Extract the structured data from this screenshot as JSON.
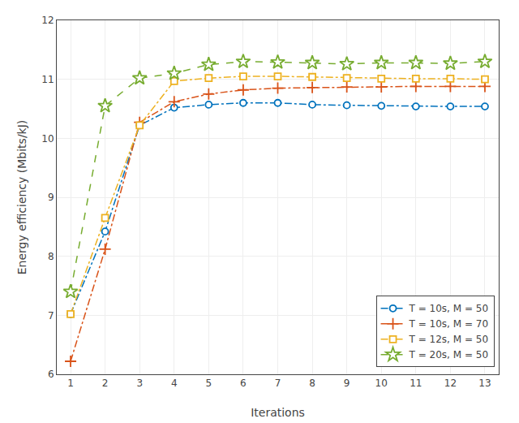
{
  "chart_data": {
    "type": "line",
    "x": [
      1,
      2,
      3,
      4,
      5,
      6,
      7,
      8,
      9,
      10,
      11,
      12,
      13
    ],
    "series": [
      {
        "name": "T = 10s, M = 50",
        "color": "#0072BD",
        "marker": "circle",
        "line_style": "dashdot",
        "values": [
          7.02,
          8.42,
          10.22,
          10.52,
          10.57,
          10.6,
          10.6,
          10.57,
          10.56,
          10.55,
          10.54,
          10.54,
          10.54
        ]
      },
      {
        "name": "T = 10s, M = 70",
        "color": "#D95319",
        "marker": "plus",
        "line_style": "dashdot",
        "values": [
          6.22,
          8.12,
          10.27,
          10.62,
          10.75,
          10.82,
          10.85,
          10.86,
          10.87,
          10.87,
          10.88,
          10.88,
          10.88
        ]
      },
      {
        "name": "T = 12s, M = 50",
        "color": "#EDB120",
        "marker": "square",
        "line_style": "dashdot",
        "values": [
          7.02,
          8.65,
          10.22,
          10.97,
          11.02,
          11.05,
          11.05,
          11.04,
          11.02,
          11.01,
          11.01,
          11.01,
          11.0
        ]
      },
      {
        "name": "T = 20s, M = 50",
        "color": "#77AC30",
        "marker": "star",
        "line_style": "dashed",
        "values": [
          7.4,
          10.55,
          11.02,
          11.1,
          11.25,
          11.3,
          11.29,
          11.28,
          11.26,
          11.28,
          11.28,
          11.27,
          11.3
        ]
      }
    ],
    "xlabel": "Iterations",
    "ylabel": "Energy efficiency (Mbits/kJ)",
    "xlim": [
      0.6,
      13.4
    ],
    "ylim": [
      6,
      12
    ],
    "xticks": [
      1,
      2,
      3,
      4,
      5,
      6,
      7,
      8,
      9,
      10,
      11,
      12,
      13
    ],
    "yticks": [
      6,
      7,
      8,
      9,
      10,
      11,
      12
    ],
    "grid": true,
    "legend": "lower right"
  }
}
